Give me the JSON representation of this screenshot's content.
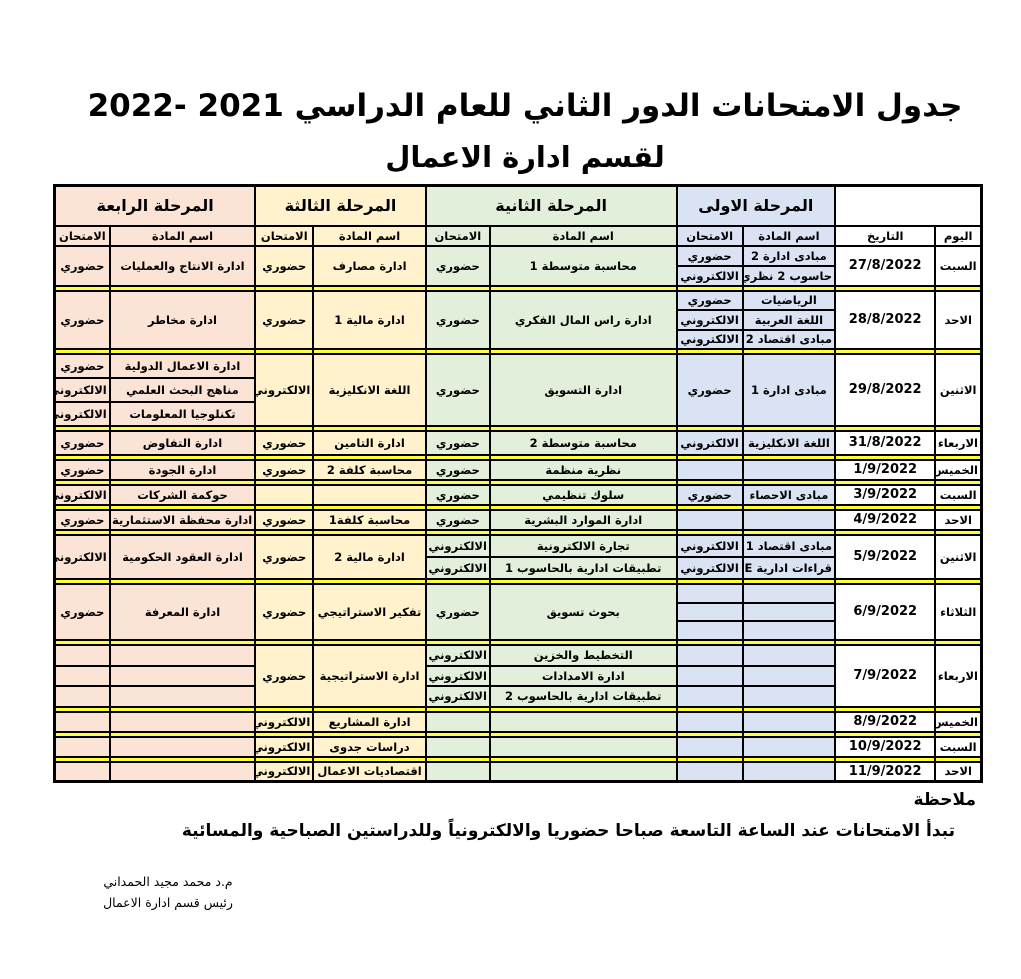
{
  "title": {
    "line1": "جدول الامتحانات الدور الثاني للعام الدراسي 2021 -2022",
    "line2": "لقسم ادارة الاعمال"
  },
  "headers": {
    "day": "اليوم",
    "date": "التاريخ",
    "subject": "اسم المادة",
    "exam": "الامتحان",
    "stages": [
      "المرحلة الاولى",
      "المرحلة الثانية",
      "المرحلة الثالثة",
      "المرحلة الرابعة"
    ]
  },
  "colors": {
    "stage1": "#dae3f3",
    "stage2": "#e2efda",
    "stage3": "#fff2cc",
    "stage4": "#fbe3d6",
    "separator": "#ffff33"
  },
  "rows": [
    {
      "day": "السبت",
      "date": "27/8/2022",
      "s1": [
        {
          "subject": "مبادى ادارة 2",
          "exam": "حضوري"
        },
        {
          "subject": "حاسوب 2 نظري",
          "exam": "الالكتروني"
        }
      ],
      "s2": [
        {
          "subject": "محاسبة متوسطة 1",
          "exam": "حضوري"
        }
      ],
      "s3": [
        {
          "subject": "ادارة مصارف",
          "exam": "حضوري"
        }
      ],
      "s4": [
        {
          "subject": "ادارة الانتاج والعمليات",
          "exam": "حضوري"
        }
      ]
    },
    {
      "day": "الاحد",
      "date": "28/8/2022",
      "s1": [
        {
          "subject": "الرياضيات",
          "exam": "حضوري"
        },
        {
          "subject": "اللغة العربية",
          "exam": "الالكتروني"
        },
        {
          "subject": "مبادى اقتصاد 2",
          "exam": "الالكتروني"
        }
      ],
      "s2": [
        {
          "subject": "ادارة راس المال الفكري",
          "exam": "حضوري"
        }
      ],
      "s3": [
        {
          "subject": "ادارة مالية 1",
          "exam": "حضوري"
        }
      ],
      "s4": [
        {
          "subject": "ادارة مخاطر",
          "exam": "حضوري"
        }
      ]
    },
    {
      "day": "الاثنين",
      "date": "29/8/2022",
      "s1": [
        {
          "subject": "مبادى ادارة 1",
          "exam": "حضوري"
        }
      ],
      "s2": [
        {
          "subject": "ادارة التسويق",
          "exam": "حضوري"
        }
      ],
      "s3": [
        {
          "subject": "اللغة الانكليزية",
          "exam": "الالكتروني"
        }
      ],
      "s4": [
        {
          "subject": "ادارة الاعمال الدولية",
          "exam": "حضوري"
        },
        {
          "subject": "مناهج البحث العلمي",
          "exam": "الالكتروني"
        },
        {
          "subject": "تكنلوجيا المعلومات",
          "exam": "الالكتروني"
        }
      ]
    },
    {
      "day": "الاربعاء",
      "date": "31/8/2022",
      "s1": [
        {
          "subject": "اللغة الانكليزية",
          "exam": "الالكتروني"
        }
      ],
      "s2": [
        {
          "subject": "محاسبة متوسطة 2",
          "exam": "حضوري"
        }
      ],
      "s3": [
        {
          "subject": "ادارة التامين",
          "exam": "حضوري"
        }
      ],
      "s4": [
        {
          "subject": "ادارة التفاوض",
          "exam": "حضوري"
        }
      ]
    },
    {
      "day": "الخميس",
      "date": "1/9/2022",
      "s1": [
        {
          "subject": "",
          "exam": ""
        }
      ],
      "s2": [
        {
          "subject": "نظرية منظمة",
          "exam": "حضوري"
        }
      ],
      "s3": [
        {
          "subject": "محاسبة كلفة 2",
          "exam": "حضوري"
        }
      ],
      "s4": [
        {
          "subject": "ادارة الجودة",
          "exam": "حضوري"
        }
      ]
    },
    {
      "day": "السبت",
      "date": "3/9/2022",
      "s1": [
        {
          "subject": "مبادى الاحصاء",
          "exam": "حضوري"
        }
      ],
      "s2": [
        {
          "subject": "سلوك تنظيمي",
          "exam": "حضوري"
        }
      ],
      "s3": [
        {
          "subject": "",
          "exam": ""
        }
      ],
      "s4": [
        {
          "subject": "حوكمة الشركات",
          "exam": "الالكتروني"
        }
      ]
    },
    {
      "day": "الاحد",
      "date": "4/9/2022",
      "s1": [
        {
          "subject": "",
          "exam": ""
        }
      ],
      "s2": [
        {
          "subject": "ادارة الموارد البشرية",
          "exam": "حضوري"
        }
      ],
      "s3": [
        {
          "subject": "محاسبة كلفة1",
          "exam": "حضوري"
        }
      ],
      "s4": [
        {
          "subject": "ادارة محفظة الاستثمارية",
          "exam": "حضوري"
        }
      ]
    },
    {
      "day": "الاثنين",
      "date": "5/9/2022",
      "s1": [
        {
          "subject": "مبادى اقتصاد 1",
          "exam": "الالكتروني"
        },
        {
          "subject": "قراءات ادارية E",
          "exam": "الالكتروني"
        }
      ],
      "s2": [
        {
          "subject": "تجارة الالكترونية",
          "exam": "الالكتروني"
        },
        {
          "subject": "تطبيقات ادارية بالحاسوب 1",
          "exam": "الالكتروني"
        }
      ],
      "s3": [
        {
          "subject": "ادارة مالية 2",
          "exam": "حضوري"
        }
      ],
      "s4": [
        {
          "subject": "ادارة العقود الحكومية",
          "exam": "الالكتروني"
        }
      ]
    },
    {
      "day": "الثلاثاء",
      "date": "6/9/2022",
      "s1": [
        {
          "subject": "",
          "exam": ""
        },
        {
          "subject": "",
          "exam": ""
        },
        {
          "subject": "",
          "exam": ""
        }
      ],
      "s2": [
        {
          "subject": "بحوث تسويق",
          "exam": "حضوري"
        }
      ],
      "s3": [
        {
          "subject": "تفكير الاستراتيجي",
          "exam": "حضوري"
        }
      ],
      "s4": [
        {
          "subject": "ادارة المعرفة",
          "exam": "حضوري"
        }
      ]
    },
    {
      "day": "الاربعاء",
      "date": "7/9/2022",
      "s1": [
        {
          "subject": "",
          "exam": ""
        },
        {
          "subject": "",
          "exam": ""
        },
        {
          "subject": "",
          "exam": ""
        }
      ],
      "s2": [
        {
          "subject": "التخطيط والخزين",
          "exam": "الالكتروني"
        },
        {
          "subject": "ادارة الامدادات",
          "exam": "الالكتروني"
        },
        {
          "subject": "تطبيقات ادارية بالحاسوب 2",
          "exam": "الالكتروني"
        }
      ],
      "s3": [
        {
          "subject": "ادارة الاستراتيجية",
          "exam": "حضوري"
        }
      ],
      "s4": [
        {
          "subject": "",
          "exam": ""
        },
        {
          "subject": "",
          "exam": ""
        },
        {
          "subject": "",
          "exam": ""
        }
      ]
    },
    {
      "day": "الخميس",
      "date": "8/9/2022",
      "s1": [
        {
          "subject": "",
          "exam": ""
        }
      ],
      "s2": [
        {
          "subject": "",
          "exam": ""
        }
      ],
      "s3": [
        {
          "subject": "ادارة المشاريع",
          "exam": "الالكتروني"
        }
      ],
      "s4": [
        {
          "subject": "",
          "exam": ""
        }
      ]
    },
    {
      "day": "السبت",
      "date": "10/9/2022",
      "s1": [
        {
          "subject": "",
          "exam": ""
        }
      ],
      "s2": [
        {
          "subject": "",
          "exam": ""
        }
      ],
      "s3": [
        {
          "subject": "دراسات جدوى",
          "exam": "الالكتروني"
        }
      ],
      "s4": [
        {
          "subject": "",
          "exam": ""
        }
      ]
    },
    {
      "day": "الاحد",
      "date": "11/9/2022",
      "s1": [
        {
          "subject": "",
          "exam": ""
        }
      ],
      "s2": [
        {
          "subject": "",
          "exam": ""
        }
      ],
      "s3": [
        {
          "subject": "اقتصاديات الاعمال",
          "exam": "الالكتروني"
        }
      ],
      "s4": [
        {
          "subject": "",
          "exam": ""
        }
      ]
    }
  ],
  "note": {
    "label": "ملاحظة",
    "text": "تبدأ الامتحانات عند الساعة التاسعة صباحا حضوريا والالكترونياً وللدراستين الصباحية والمسائية"
  },
  "signature": {
    "name": "م.د محمد مجيد الحمداني",
    "role": "رئيس قسم ادارة الاعمال"
  }
}
